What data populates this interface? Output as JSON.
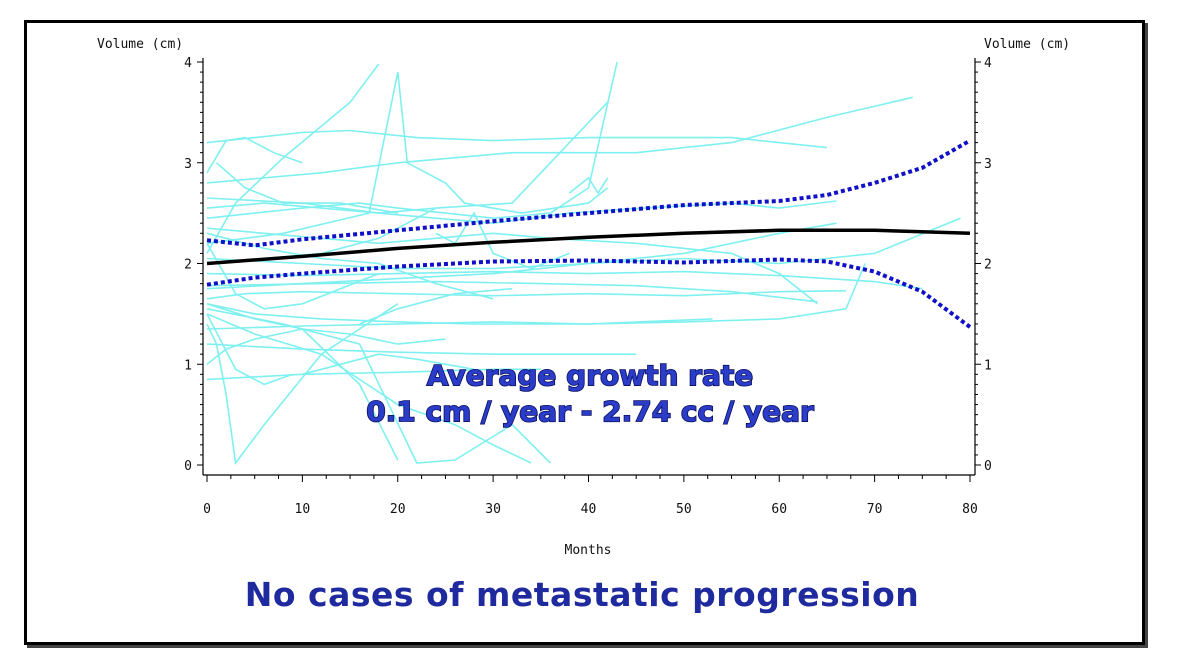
{
  "chart_data": {
    "type": "line",
    "xlabel": "Months",
    "ylabel_left": "Volume (cm)",
    "ylabel_right": "Volume (cm)",
    "xlim": [
      0,
      80
    ],
    "ylim": [
      0,
      4
    ],
    "x_ticks": [
      0,
      10,
      20,
      30,
      40,
      50,
      60,
      70,
      80
    ],
    "y_ticks": [
      0,
      1,
      2,
      3,
      4
    ],
    "grid": false,
    "colors": {
      "individual": "#7ff0f0",
      "mean": "#000000",
      "ci": "#1010c8",
      "annotation": "#2a3cc8"
    },
    "series": [
      {
        "role": "mean",
        "x": [
          0,
          10,
          20,
          30,
          40,
          50,
          60,
          70,
          80
        ],
        "y": [
          2.0,
          2.07,
          2.15,
          2.21,
          2.26,
          2.3,
          2.33,
          2.33,
          2.3
        ]
      },
      {
        "role": "ci-upper",
        "x": [
          0,
          5,
          10,
          20,
          30,
          40,
          50,
          60,
          65,
          70,
          75,
          80
        ],
        "y": [
          2.23,
          2.18,
          2.24,
          2.33,
          2.42,
          2.5,
          2.58,
          2.62,
          2.68,
          2.8,
          2.95,
          3.22
        ]
      },
      {
        "role": "ci-lower",
        "x": [
          0,
          5,
          10,
          20,
          30,
          40,
          50,
          60,
          65,
          70,
          75,
          80
        ],
        "y": [
          1.79,
          1.86,
          1.9,
          1.97,
          2.02,
          2.03,
          2.01,
          2.04,
          2.02,
          1.92,
          1.72,
          1.37
        ]
      }
    ],
    "individual_series": [
      {
        "x": [
          0,
          3,
          8,
          15,
          18
        ],
        "y": [
          2.1,
          2.6,
          3.05,
          3.6,
          3.98
        ]
      },
      {
        "x": [
          0,
          2,
          4,
          7,
          10
        ],
        "y": [
          2.9,
          3.22,
          3.25,
          3.1,
          3.0
        ]
      },
      {
        "x": [
          0,
          5,
          10,
          15,
          22,
          30,
          40,
          55,
          65
        ],
        "y": [
          3.2,
          3.25,
          3.3,
          3.32,
          3.25,
          3.22,
          3.25,
          3.25,
          3.15
        ]
      },
      {
        "x": [
          0,
          6,
          12,
          18,
          24,
          32,
          42
        ],
        "y": [
          2.55,
          2.6,
          2.55,
          2.5,
          2.55,
          2.6,
          3.6
        ]
      },
      {
        "x": [
          0,
          5,
          10,
          16,
          20,
          25,
          30,
          36,
          40,
          43
        ],
        "y": [
          2.45,
          2.5,
          2.55,
          2.6,
          2.55,
          2.5,
          2.45,
          2.5,
          2.75,
          4.0
        ]
      },
      {
        "x": [
          0,
          8,
          17,
          20,
          21,
          25,
          27,
          33,
          40,
          42
        ],
        "y": [
          2.2,
          2.3,
          2.5,
          3.9,
          3.0,
          2.8,
          2.6,
          2.5,
          2.6,
          2.75
        ]
      },
      {
        "x": [
          0,
          4,
          10,
          20,
          30,
          40,
          50,
          60,
          67
        ],
        "y": [
          1.65,
          1.7,
          1.72,
          1.7,
          1.68,
          1.7,
          1.68,
          1.72,
          1.73
        ]
      },
      {
        "x": [
          0,
          10,
          20,
          30,
          40,
          50,
          60,
          70,
          75
        ],
        "y": [
          1.9,
          1.88,
          1.9,
          1.92,
          1.9,
          1.92,
          1.88,
          1.82,
          1.75
        ]
      },
      {
        "x": [
          0,
          12,
          20,
          32,
          45,
          55,
          65,
          74
        ],
        "y": [
          2.8,
          2.9,
          3.0,
          3.1,
          3.1,
          3.2,
          3.45,
          3.65
        ]
      },
      {
        "x": [
          0,
          2,
          5,
          10,
          15,
          20,
          25
        ],
        "y": [
          1.0,
          1.15,
          1.25,
          1.35,
          1.3,
          1.2,
          1.25
        ]
      },
      {
        "x": [
          0,
          3,
          6,
          9
        ],
        "y": [
          1.5,
          0.95,
          0.8,
          0.9
        ]
      },
      {
        "x": [
          0,
          1,
          2,
          3,
          6,
          12,
          20
        ],
        "y": [
          1.4,
          1.2,
          0.7,
          0.02,
          0.4,
          1.1,
          1.6
        ]
      },
      {
        "x": [
          0,
          5,
          10,
          16,
          20
        ],
        "y": [
          1.6,
          1.45,
          1.35,
          0.8,
          0.05
        ]
      },
      {
        "x": [
          0,
          5,
          12,
          20,
          26,
          30,
          34
        ],
        "y": [
          1.5,
          1.3,
          1.1,
          0.6,
          0.4,
          0.2,
          0.02
        ]
      },
      {
        "x": [
          0,
          8,
          16,
          22,
          26,
          32,
          36
        ],
        "y": [
          1.55,
          1.4,
          1.2,
          0.02,
          0.05,
          0.4,
          0.02
        ]
      },
      {
        "x": [
          0,
          6,
          12,
          18,
          24,
          30,
          36,
          45,
          55,
          60,
          64
        ],
        "y": [
          2.35,
          2.3,
          2.25,
          2.2,
          2.25,
          2.3,
          2.25,
          2.2,
          2.1,
          1.9,
          1.6
        ]
      },
      {
        "x": [
          0,
          10,
          18,
          24,
          30,
          38,
          46,
          55,
          60,
          66
        ],
        "y": [
          2.65,
          2.6,
          2.5,
          2.45,
          2.4,
          2.5,
          2.55,
          2.6,
          2.55,
          2.62
        ]
      },
      {
        "x": [
          0,
          10,
          20,
          30,
          40,
          50,
          60,
          67,
          69
        ],
        "y": [
          1.35,
          1.38,
          1.4,
          1.42,
          1.4,
          1.42,
          1.45,
          1.55,
          2.0
        ]
      },
      {
        "x": [
          0,
          10,
          20,
          30,
          40,
          50,
          60,
          70,
          79
        ],
        "y": [
          2.05,
          2.0,
          1.95,
          1.95,
          2.0,
          2.05,
          2.0,
          2.1,
          2.45
        ]
      },
      {
        "x": [
          0,
          6,
          12,
          18,
          24,
          30
        ],
        "y": [
          2.3,
          2.15,
          2.05,
          2.0,
          1.8,
          1.65
        ]
      },
      {
        "x": [
          0,
          10,
          20,
          30,
          40,
          50,
          60,
          66
        ],
        "y": [
          1.75,
          1.8,
          1.85,
          1.9,
          2.0,
          2.1,
          2.3,
          2.4
        ]
      },
      {
        "x": [
          0,
          3,
          6,
          10,
          14,
          18
        ],
        "y": [
          2.2,
          1.7,
          1.55,
          1.6,
          1.75,
          1.9
        ]
      },
      {
        "x": [
          0,
          10,
          20,
          30,
          40,
          45
        ],
        "y": [
          1.2,
          1.15,
          1.12,
          1.1,
          1.1,
          1.1
        ]
      },
      {
        "x": [
          0,
          5,
          12,
          20,
          28,
          40,
          53
        ],
        "y": [
          1.6,
          1.5,
          1.45,
          1.42,
          1.4,
          1.4,
          1.45
        ]
      },
      {
        "x": [
          0,
          10,
          20,
          30,
          35
        ],
        "y": [
          0.85,
          0.9,
          0.92,
          0.95,
          0.95
        ]
      },
      {
        "x": [
          0,
          6,
          12,
          18,
          24
        ],
        "y": [
          2.0,
          2.05,
          2.1,
          2.25,
          2.55
        ]
      },
      {
        "x": [
          1,
          4,
          8,
          14,
          20
        ],
        "y": [
          3.0,
          2.75,
          2.6,
          2.6,
          2.5
        ]
      },
      {
        "x": [
          16,
          20,
          26,
          32
        ],
        "y": [
          1.4,
          1.55,
          1.7,
          1.75
        ]
      },
      {
        "x": [
          10,
          14,
          18,
          22,
          28
        ],
        "y": [
          0.9,
          1.0,
          1.1,
          1.05,
          0.95
        ]
      },
      {
        "x": [
          0,
          12,
          24,
          35,
          45,
          55,
          64
        ],
        "y": [
          1.78,
          1.8,
          1.82,
          1.8,
          1.78,
          1.72,
          1.62
        ]
      },
      {
        "x": [
          38,
          40,
          41,
          42
        ],
        "y": [
          2.7,
          2.85,
          2.7,
          2.85
        ]
      },
      {
        "x": [
          24,
          26,
          28,
          30,
          34,
          38
        ],
        "y": [
          2.3,
          2.2,
          2.5,
          2.1,
          1.95,
          2.1
        ]
      }
    ]
  },
  "annotation": {
    "line1": "Average growth rate",
    "line2": "0.1 cm / year - 2.74 cc / year"
  },
  "footer": "No cases of metastatic progression"
}
